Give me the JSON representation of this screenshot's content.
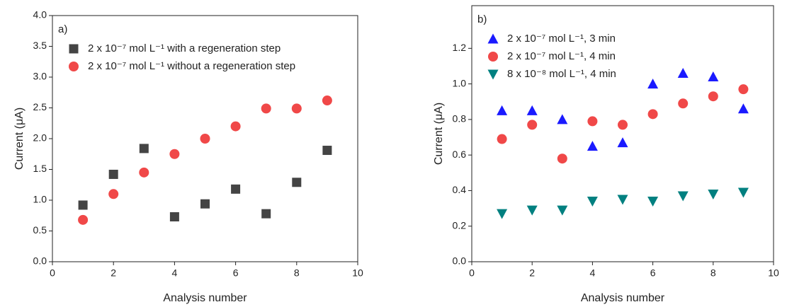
{
  "chart_data": [
    {
      "type": "scatter",
      "annotation": "a)",
      "xlabel": "Analysis number",
      "ylabel": "Current (μA)",
      "x": [
        1,
        2,
        3,
        4,
        5,
        6,
        7,
        8,
        9
      ],
      "xlim": [
        0,
        10
      ],
      "xticks": [
        0,
        2,
        4,
        6,
        8,
        10
      ],
      "ylim": [
        0,
        4
      ],
      "yticks": [
        {
          "value": 0,
          "label": "0.0"
        },
        {
          "value": 0.5,
          "label": "0.5"
        },
        {
          "value": 1,
          "label": "1.0"
        },
        {
          "value": 1.5,
          "label": "1.5"
        },
        {
          "value": 2,
          "label": "2.0"
        },
        {
          "value": 2.5,
          "label": "2.5"
        },
        {
          "value": 3,
          "label": "3.0"
        },
        {
          "value": 3.5,
          "label": "3.5"
        },
        {
          "value": 4,
          "label": "4.0"
        }
      ],
      "legend": "upper left",
      "series": [
        {
          "name": "2 x 10⁻⁷ mol L⁻¹ with a regeneration step",
          "color": "#444444",
          "marker": "square",
          "values": [
            0.92,
            1.42,
            1.84,
            0.73,
            0.94,
            1.18,
            0.78,
            1.29,
            1.81
          ]
        },
        {
          "name": "2 x 10⁻⁷ mol L⁻¹ without a regeneration step",
          "color": "#f04848",
          "marker": "circle",
          "values": [
            0.68,
            1.1,
            1.45,
            1.75,
            2.0,
            2.2,
            2.49,
            2.49,
            2.62
          ]
        }
      ]
    },
    {
      "type": "scatter",
      "annotation": "b)",
      "xlabel": "Analysis number",
      "ylabel": "Current (μA)",
      "x": [
        1,
        2,
        3,
        4,
        5,
        6,
        7,
        8,
        9
      ],
      "xlim": [
        0,
        10
      ],
      "xticks": [
        0,
        2,
        4,
        6,
        8,
        10
      ],
      "ylim": [
        0,
        1.44
      ],
      "yticks": [
        {
          "value": 0,
          "label": "0.0"
        },
        {
          "value": 0.2,
          "label": "0.2"
        },
        {
          "value": 0.4,
          "label": "0.4"
        },
        {
          "value": 0.6,
          "label": "0.6"
        },
        {
          "value": 0.8,
          "label": "0.8"
        },
        {
          "value": 1,
          "label": "1.0"
        },
        {
          "value": 1.2,
          "label": "1.2"
        }
      ],
      "legend": "upper left",
      "series": [
        {
          "name": "2 x 10⁻⁷ mol L⁻¹, 3 min",
          "color": "#1a1aff",
          "marker": "triangle-up",
          "values": [
            0.85,
            0.85,
            0.8,
            0.65,
            0.67,
            1.0,
            1.06,
            1.04,
            0.86
          ]
        },
        {
          "name": "2 x 10⁻⁷ mol L⁻¹, 4 min",
          "color": "#f04848",
          "marker": "circle",
          "values": [
            0.69,
            0.77,
            0.58,
            0.79,
            0.77,
            0.83,
            0.89,
            0.93,
            0.97
          ]
        },
        {
          "name": "8 x 10⁻⁸ mol L⁻¹, 4 min",
          "color": "#008080",
          "marker": "triangle-down",
          "values": [
            0.27,
            0.29,
            0.29,
            0.34,
            0.35,
            0.34,
            0.37,
            0.38,
            0.39
          ]
        }
      ]
    }
  ]
}
